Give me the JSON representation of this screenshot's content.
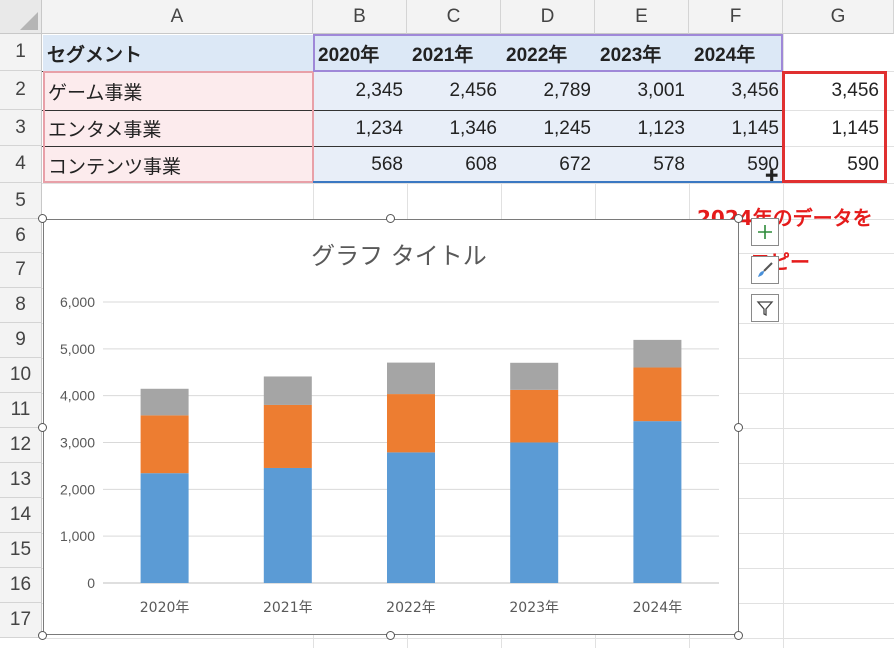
{
  "columns": [
    "A",
    "B",
    "C",
    "D",
    "E",
    "F",
    "G"
  ],
  "rows": [
    "1",
    "2",
    "3",
    "4",
    "5",
    "6",
    "7",
    "8",
    "9",
    "10",
    "11",
    "12",
    "13",
    "14",
    "15",
    "16",
    "17"
  ],
  "table": {
    "header": [
      "セグメント",
      "2020年",
      "2021年",
      "2022年",
      "2023年",
      "2024年"
    ],
    "data": [
      {
        "segment": "ゲーム事業",
        "values": [
          "2,345",
          "2,456",
          "2,789",
          "3,001",
          "3,456"
        ],
        "copy": "3,456"
      },
      {
        "segment": "エンタメ事業",
        "values": [
          "1,234",
          "1,346",
          "1,245",
          "1,123",
          "1,145"
        ],
        "copy": "1,145"
      },
      {
        "segment": "コンテンツ事業",
        "values": [
          "568",
          "608",
          "672",
          "578",
          "590"
        ],
        "copy": "590"
      }
    ]
  },
  "annotation": {
    "line1": "2024年のデータを",
    "line2": "コピー",
    "color": "#e51b1b"
  },
  "chart_data": {
    "type": "bar",
    "stacked": true,
    "title": "グラフ タイトル",
    "categories": [
      "2020年",
      "2021年",
      "2022年",
      "2023年",
      "2024年"
    ],
    "series": [
      {
        "values": [
          2345,
          2456,
          2789,
          3001,
          3456
        ],
        "color": "#5b9bd5"
      },
      {
        "values": [
          1234,
          1346,
          1245,
          1123,
          1145
        ],
        "color": "#ed7d31"
      },
      {
        "values": [
          568,
          608,
          672,
          578,
          590
        ],
        "color": "#a5a5a5"
      }
    ],
    "ylim": [
      0,
      6000
    ],
    "yticks": [
      "0",
      "1,000",
      "2,000",
      "3,000",
      "4,000",
      "5,000",
      "6,000"
    ],
    "grid": true
  },
  "chart_buttons": [
    "plus-icon",
    "brush-icon",
    "filter-icon"
  ]
}
